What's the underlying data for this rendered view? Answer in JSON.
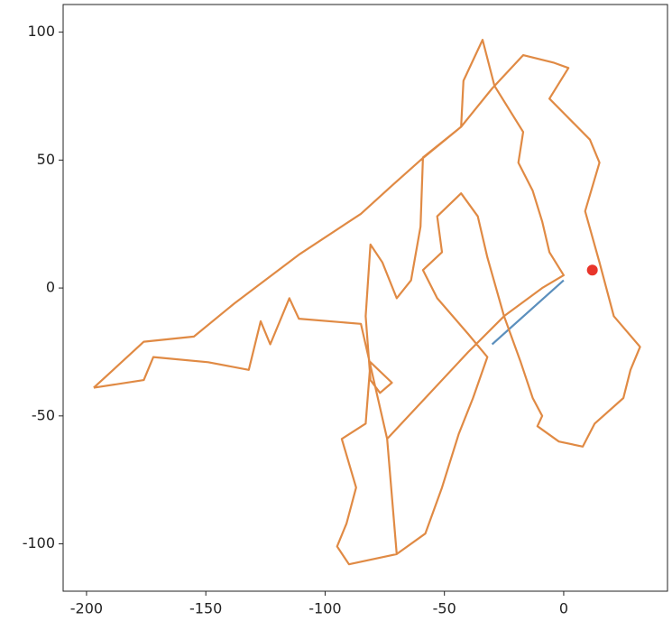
{
  "chart_data": {
    "type": "line",
    "xlim": [
      -209.8,
      43.5
    ],
    "ylim": [
      -118.5,
      110.8
    ],
    "xticks": [
      -200,
      -150,
      -100,
      -50,
      0
    ],
    "yticks": [
      -100,
      -50,
      0,
      50,
      100
    ],
    "grid": false,
    "series": [
      {
        "color": "#5b8fbd",
        "x": [
          0,
          -30
        ],
        "values": [
          3,
          -22
        ]
      },
      {
        "color": "#e08a44",
        "x": [
          -197,
          -176,
          -155,
          -138,
          -111,
          -85,
          -72,
          -60,
          -43,
          -30,
          -17,
          -4,
          2,
          -6,
          11,
          15,
          9,
          15,
          21,
          32,
          28,
          25,
          13,
          8,
          -2,
          -11,
          -9,
          -13,
          -18,
          -25,
          -32,
          -36,
          -43,
          -53,
          -51,
          -59,
          -53,
          -40,
          -32,
          -38,
          -44,
          -51,
          -58,
          -70,
          -74,
          -58,
          -40,
          -25,
          -9,
          0,
          -6,
          -9,
          -13,
          -19,
          -17,
          -29,
          -34,
          -42,
          -43,
          -59,
          -60,
          -64,
          -70,
          -76,
          -81,
          -83,
          -81,
          -77,
          -72,
          -81,
          -83,
          -93,
          -87,
          -91,
          -95,
          -90,
          -70,
          -74,
          -85,
          -111,
          -115,
          -123,
          -127,
          -132,
          -149,
          -172,
          -176,
          -197
        ],
        "values": [
          -39,
          -21,
          -19,
          -6,
          13,
          29,
          40,
          50,
          63,
          78,
          91,
          88,
          86,
          74,
          58,
          49,
          30,
          10,
          -11,
          -23,
          -32,
          -43,
          -53,
          -62,
          -60,
          -54,
          -50,
          -43,
          -29,
          -11,
          12,
          28,
          37,
          28,
          14,
          7,
          -4,
          -18,
          -27,
          -43,
          -57,
          -78,
          -96,
          -104,
          -59,
          -43,
          -25,
          -11,
          0,
          5,
          14,
          26,
          38,
          49,
          61,
          79,
          97,
          81,
          63,
          51,
          24,
          3,
          -4,
          10,
          17,
          -11,
          -36,
          -41,
          -37,
          -29,
          -53,
          -59,
          -78,
          -92,
          -101,
          -108,
          -104,
          -59,
          -14,
          -12,
          -4,
          -22,
          -13,
          -32,
          -29,
          -27,
          -36,
          -39
        ]
      },
      {
        "color": "#e8352b",
        "marker": true,
        "x": [
          12
        ],
        "values": [
          7
        ]
      }
    ]
  }
}
